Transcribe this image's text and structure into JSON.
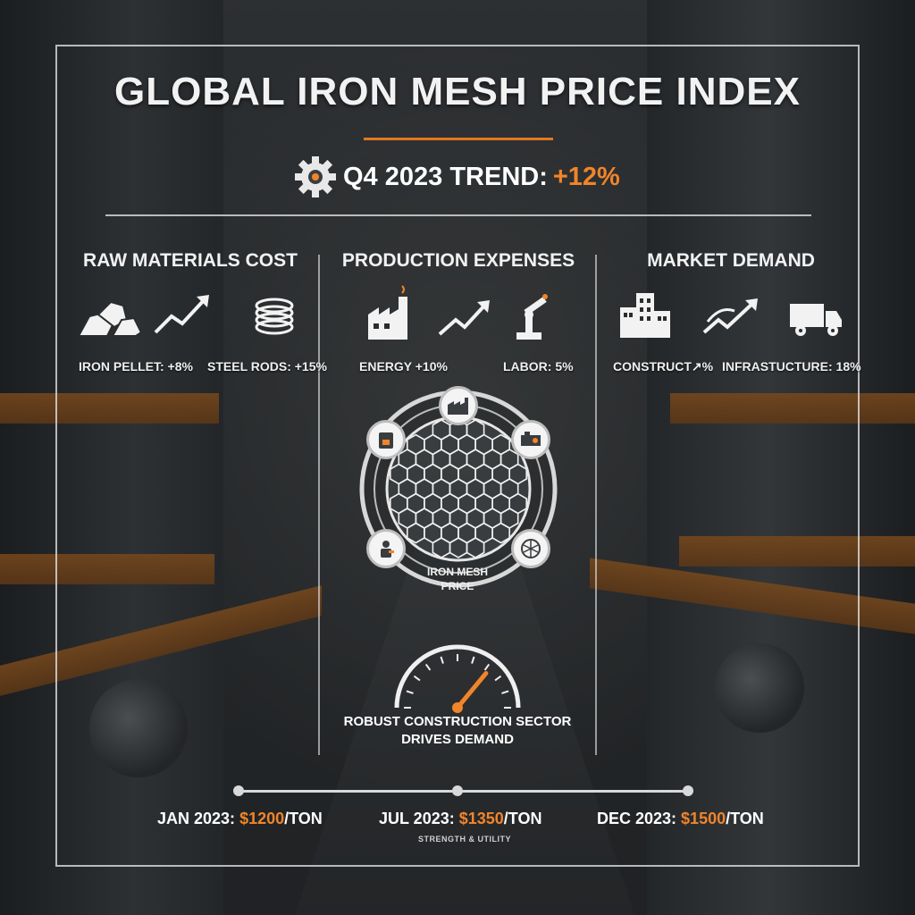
{
  "title": "GLOBAL IRON MESH PRICE INDEX",
  "trend": {
    "prefix": "Q4 2023 TREND: ",
    "value": "+12%",
    "icon": "gear-icon"
  },
  "sections": {
    "raw": {
      "title": "RAW MATERIALS COST",
      "icons": [
        "ore-icon",
        "trend-up-icon",
        "steel-coil-icon"
      ],
      "items": [
        "IRON PELLET: +8%",
        "STEEL RODS: +15%"
      ]
    },
    "production": {
      "title": "PRODUCTION EXPENSES",
      "icons": [
        "factory-icon",
        "trend-up-icon",
        "robot-arm-icon"
      ],
      "items": [
        "ENERGY +10%",
        "LABOR: 5%"
      ]
    },
    "market": {
      "title": "MARKET DEMAND",
      "icons": [
        "buildings-icon",
        "trend-up-icon",
        "truck-icon"
      ],
      "items": [
        "CONSTRUCT↗%",
        "INFRASTUCTURE: 18%"
      ]
    }
  },
  "center": {
    "label_line1": "IRON MESH",
    "label_line2": "PRICE",
    "nodes": [
      "factory-icon",
      "machine-icon",
      "furnace-icon",
      "worker-icon",
      "mesh-roll-icon"
    ]
  },
  "gauge": {
    "icon": "speedometer-icon",
    "level": 0.72
  },
  "caption": {
    "line1": "ROBUST CONSTRUCTION SECTOR",
    "line2": "DRIVES DEMAND"
  },
  "timeline": [
    {
      "date": "JAN 2023: ",
      "price": "$1200",
      "unit": "/TON"
    },
    {
      "date": "JUL 2023: ",
      "price": "$1350",
      "unit": "/TON",
      "sub": "STRENGTH & UTILITY"
    },
    {
      "date": "DEC 2023: ",
      "price": "$1500",
      "unit": "/TON"
    }
  ],
  "colors": {
    "accent": "#f0852a",
    "text": "#f2f2f2",
    "line": "#d9d9d9"
  }
}
